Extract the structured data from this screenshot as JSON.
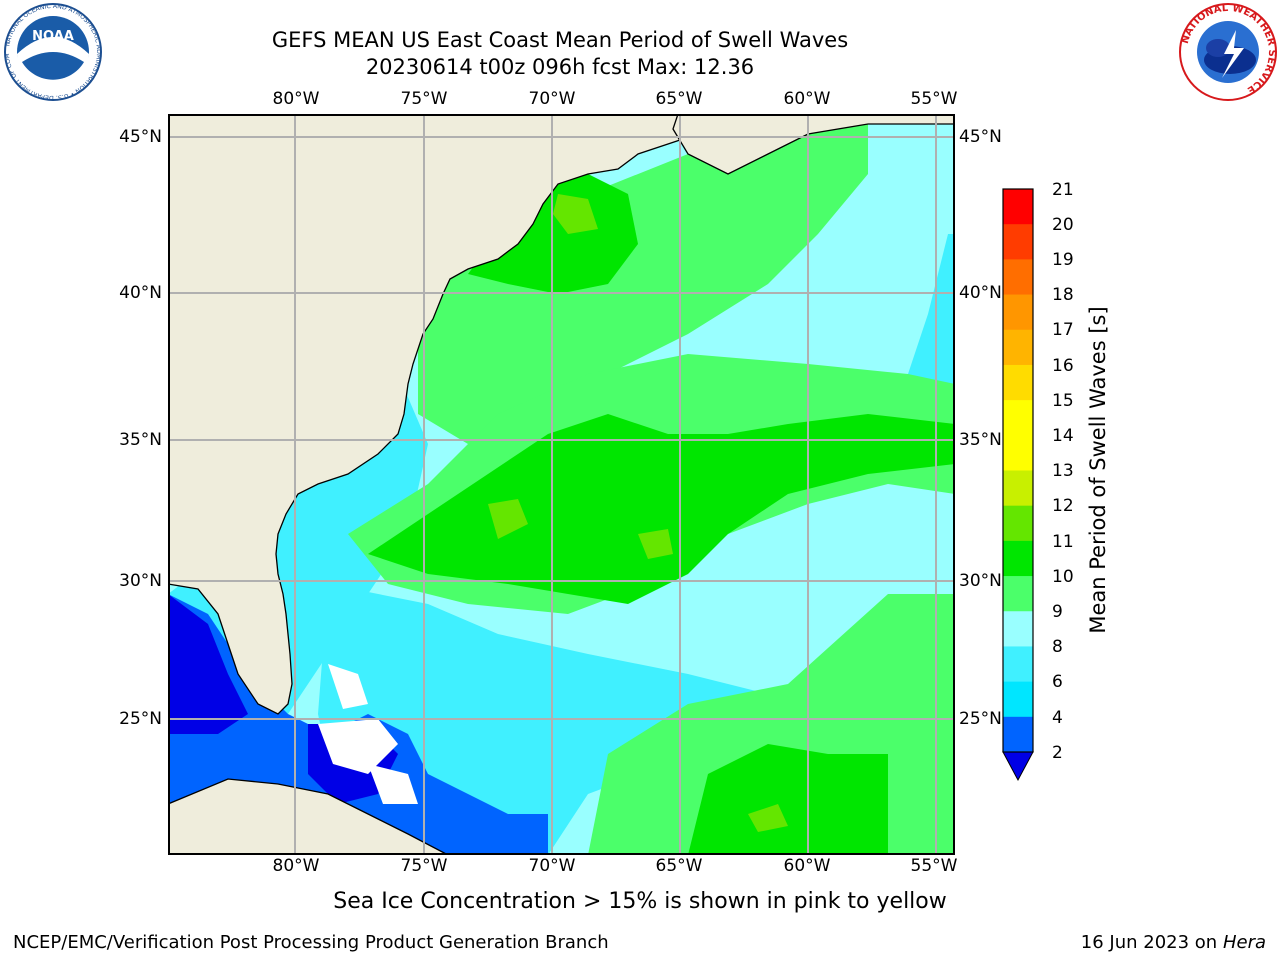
{
  "title": {
    "line1": "GEFS MEAN US East Coast Mean Period of Swell Waves",
    "line2": "20230614 t00z 096h fcst   Max: 12.36"
  },
  "map": {
    "lon_labels": [
      "80°W",
      "75°W",
      "70°W",
      "65°W",
      "60°W",
      "55°W"
    ],
    "lat_labels": [
      "45°N",
      "40°N",
      "35°N",
      "30°N",
      "25°N"
    ],
    "colors": {
      "land": "#efeddc",
      "grid": "#b0b0b0"
    }
  },
  "colorbar": {
    "label": "Mean Period of Swell Waves [s]",
    "ticks": [
      "21",
      "20",
      "19",
      "18",
      "17",
      "16",
      "15",
      "14",
      "13",
      "12",
      "11",
      "10",
      "9",
      "8",
      "6",
      "4",
      "2"
    ],
    "bins": [
      {
        "min": 2,
        "max": 4,
        "color": "#0064ff"
      },
      {
        "min": 4,
        "max": 6,
        "color": "#00e6ff"
      },
      {
        "min": 6,
        "max": 8,
        "color": "#40f0ff"
      },
      {
        "min": 8,
        "max": 9,
        "color": "#99ffff"
      },
      {
        "min": 9,
        "max": 10,
        "color": "#4bff6a"
      },
      {
        "min": 10,
        "max": 11,
        "color": "#00e600"
      },
      {
        "min": 11,
        "max": 12,
        "color": "#64e600"
      },
      {
        "min": 12,
        "max": 13,
        "color": "#c8f000"
      },
      {
        "min": 13,
        "max": 14,
        "color": "#ffff00"
      },
      {
        "min": 14,
        "max": 15,
        "color": "#ffff00"
      },
      {
        "min": 15,
        "max": 16,
        "color": "#ffdc00"
      },
      {
        "min": 16,
        "max": 17,
        "color": "#ffb400"
      },
      {
        "min": 17,
        "max": 18,
        "color": "#ff9600"
      },
      {
        "min": 18,
        "max": 19,
        "color": "#ff6e00"
      },
      {
        "min": 19,
        "max": 20,
        "color": "#ff3c00"
      },
      {
        "min": 20,
        "max": 21,
        "color": "#ff0000"
      }
    ],
    "under_color": "#0000e6"
  },
  "footnote": "Sea Ice Concentration > 15% is shown in pink to yellow",
  "credits": {
    "left": "NCEP/EMC/Verification Post Processing Product Generation Branch",
    "right_date": "16 Jun 2023 on",
    "right_host": "Hera"
  },
  "logos": {
    "noaa_text": "NOAA",
    "noaa_ring": "NATIONAL OCEANIC AND ATMOSPHERIC ADMINISTRATION • U.S. DEPARTMENT OF COMMERCE",
    "nws_ring": "NATIONAL WEATHER SERVICE"
  }
}
